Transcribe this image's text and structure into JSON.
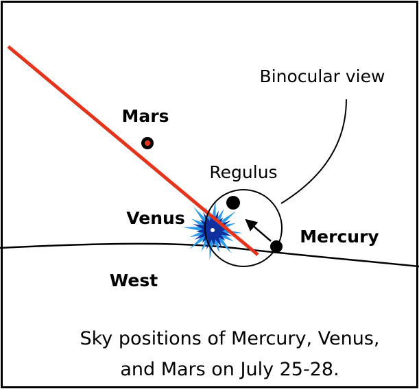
{
  "labels": {
    "binocular_view": "Binocular view",
    "mars": "Mars",
    "regulus": "Regulus",
    "venus": "Venus",
    "mercury": "Mercury",
    "west": "West"
  },
  "caption": [
    "Sky positions of Mercury, Venus,",
    "and Mars on July 25-28."
  ]
}
